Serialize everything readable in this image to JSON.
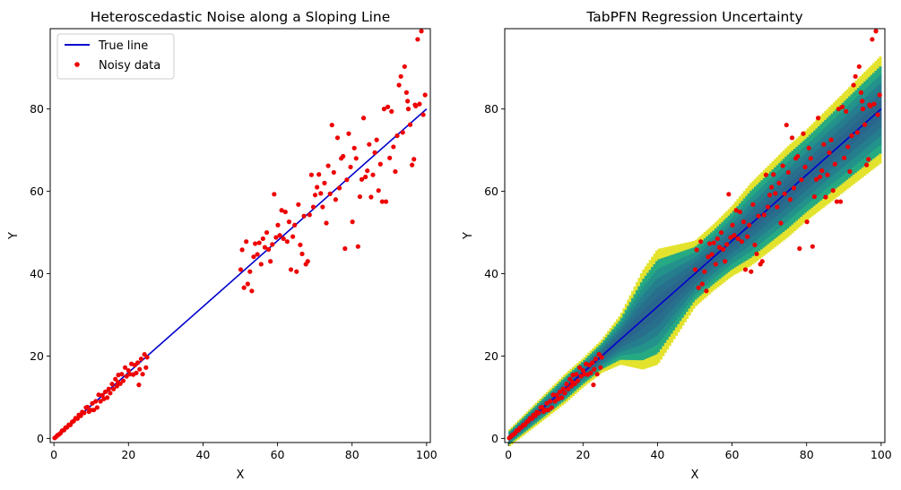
{
  "colors": {
    "true_line": "#0000cd",
    "noisy_data": "#ee0000",
    "uncertainty_low": "#2b5f8c",
    "uncertainty_mid": "#22a884",
    "uncertainty_high": "#fde725"
  },
  "chart_data": [
    {
      "type": "scatter",
      "title": "Heteroscedastic Noise along a Sloping Line",
      "xlabel": "X",
      "ylabel": "Y",
      "xlim": [
        -1,
        101
      ],
      "ylim": [
        -1,
        99.5
      ],
      "xticks": [
        0,
        20,
        40,
        60,
        80,
        100
      ],
      "yticks": [
        0,
        20,
        40,
        60,
        80
      ],
      "grid": false,
      "legend": {
        "position": "top-left",
        "entries": [
          "True line",
          "Noisy data"
        ]
      },
      "series": [
        {
          "name": "True line",
          "kind": "line",
          "color": "#0000cd",
          "x": [
            0,
            100
          ],
          "y": [
            0,
            80
          ]
        },
        {
          "name": "Noisy data",
          "kind": "scatter",
          "color": "#ee0000",
          "points": [
            [
              0.2,
              0.1
            ],
            [
              0.6,
              0.4
            ],
            [
              1.0,
              0.8
            ],
            [
              1.4,
              1.0
            ],
            [
              1.8,
              1.3
            ],
            [
              2.2,
              1.9
            ],
            [
              2.7,
              2.0
            ],
            [
              3.1,
              2.6
            ],
            [
              3.5,
              2.7
            ],
            [
              4.0,
              3.3
            ],
            [
              4.4,
              3.3
            ],
            [
              4.9,
              4.0
            ],
            [
              5.3,
              4.2
            ],
            [
              5.8,
              4.9
            ],
            [
              6.3,
              4.8
            ],
            [
              6.7,
              5.7
            ],
            [
              7.2,
              5.5
            ],
            [
              7.6,
              6.4
            ],
            [
              8.1,
              6.2
            ],
            [
              8.6,
              7.5
            ],
            [
              9.0,
              7.6
            ],
            [
              9.4,
              6.5
            ],
            [
              9.9,
              6.9
            ],
            [
              10.3,
              8.5
            ],
            [
              10.7,
              6.9
            ],
            [
              11.2,
              9.0
            ],
            [
              11.6,
              7.5
            ],
            [
              12.0,
              10.6
            ],
            [
              12.5,
              9.0
            ],
            [
              13.0,
              10.5
            ],
            [
              13.4,
              9.6
            ],
            [
              13.8,
              11.3
            ],
            [
              14.3,
              9.9
            ],
            [
              14.7,
              12.0
            ],
            [
              15.1,
              11.0
            ],
            [
              15.6,
              13.2
            ],
            [
              16.0,
              12.0
            ],
            [
              16.5,
              14.4
            ],
            [
              16.9,
              12.7
            ],
            [
              17.3,
              15.4
            ],
            [
              17.8,
              13.3
            ],
            [
              18.2,
              15.6
            ],
            [
              18.6,
              14.0
            ],
            [
              19.1,
              17.2
            ],
            [
              19.5,
              15.1
            ],
            [
              20.0,
              16.5
            ],
            [
              20.4,
              15.6
            ],
            [
              20.8,
              18.1
            ],
            [
              21.3,
              15.5
            ],
            [
              21.7,
              17.8
            ],
            [
              22.1,
              15.9
            ],
            [
              22.5,
              18.4
            ],
            [
              23.0,
              16.8
            ],
            [
              23.4,
              19.3
            ],
            [
              23.8,
              15.6
            ],
            [
              24.3,
              20.4
            ],
            [
              24.7,
              17.2
            ],
            [
              25.0,
              19.7
            ],
            [
              17.2,
              13.6
            ],
            [
              22.8,
              13.0
            ],
            [
              50.1,
              41.0
            ],
            [
              50.5,
              45.8
            ],
            [
              51.0,
              36.6
            ],
            [
              51.6,
              47.8
            ],
            [
              52.0,
              37.5
            ],
            [
              52.6,
              40.5
            ],
            [
              53.1,
              35.8
            ],
            [
              53.6,
              44.1
            ],
            [
              54.0,
              47.3
            ],
            [
              54.6,
              44.7
            ],
            [
              55.1,
              47.5
            ],
            [
              55.6,
              42.3
            ],
            [
              56.1,
              48.5
            ],
            [
              56.6,
              46.4
            ],
            [
              57.1,
              50.0
            ],
            [
              57.6,
              45.9
            ],
            [
              58.1,
              43.0
            ],
            [
              58.6,
              47.1
            ],
            [
              59.1,
              59.3
            ],
            [
              59.6,
              48.8
            ],
            [
              60.1,
              51.8
            ],
            [
              60.6,
              49.3
            ],
            [
              61.1,
              55.4
            ],
            [
              61.6,
              48.5
            ],
            [
              62.1,
              55.0
            ],
            [
              62.6,
              47.8
            ],
            [
              63.1,
              52.6
            ],
            [
              63.6,
              41.0
            ],
            [
              64.1,
              49.0
            ],
            [
              64.6,
              51.8
            ],
            [
              65.1,
              40.5
            ],
            [
              65.6,
              56.8
            ],
            [
              66.1,
              47.0
            ],
            [
              66.6,
              44.8
            ],
            [
              67.1,
              54.0
            ],
            [
              67.6,
              42.3
            ],
            [
              68.1,
              43.0
            ],
            [
              68.6,
              54.3
            ],
            [
              69.1,
              64.0
            ],
            [
              69.6,
              56.2
            ],
            [
              70.1,
              59.1
            ],
            [
              70.6,
              61.0
            ],
            [
              71.1,
              64.1
            ],
            [
              71.6,
              59.5
            ],
            [
              72.1,
              56.2
            ],
            [
              72.6,
              62.0
            ],
            [
              73.1,
              52.3
            ],
            [
              73.6,
              66.2
            ],
            [
              74.1,
              59.4
            ],
            [
              74.6,
              76.1
            ],
            [
              75.1,
              64.6
            ],
            [
              75.6,
              58.0
            ],
            [
              76.1,
              73.0
            ],
            [
              76.6,
              60.8
            ],
            [
              77.1,
              68.0
            ],
            [
              77.6,
              68.5
            ],
            [
              78.1,
              46.1
            ],
            [
              78.6,
              62.8
            ],
            [
              79.1,
              74.0
            ],
            [
              79.6,
              65.9
            ],
            [
              80.1,
              52.6
            ],
            [
              80.6,
              70.5
            ],
            [
              81.1,
              68.0
            ],
            [
              81.6,
              46.6
            ],
            [
              82.1,
              58.7
            ],
            [
              82.6,
              62.9
            ],
            [
              83.1,
              77.8
            ],
            [
              83.6,
              63.5
            ],
            [
              84.1,
              65.0
            ],
            [
              84.6,
              71.4
            ],
            [
              85.1,
              58.6
            ],
            [
              85.6,
              64.0
            ],
            [
              86.1,
              69.4
            ],
            [
              86.6,
              72.5
            ],
            [
              87.1,
              60.2
            ],
            [
              87.6,
              66.6
            ],
            [
              88.1,
              57.5
            ],
            [
              88.6,
              80.0
            ],
            [
              89.1,
              57.5
            ],
            [
              89.6,
              80.5
            ],
            [
              90.1,
              68.1
            ],
            [
              90.6,
              79.4
            ],
            [
              91.1,
              70.8
            ],
            [
              91.6,
              64.8
            ],
            [
              92.1,
              73.5
            ],
            [
              92.6,
              85.8
            ],
            [
              93.1,
              87.9
            ],
            [
              93.6,
              74.3
            ],
            [
              94.1,
              90.3
            ],
            [
              94.6,
              84.0
            ],
            [
              95.1,
              80.0
            ],
            [
              95.6,
              76.2
            ],
            [
              96.1,
              66.4
            ],
            [
              96.6,
              67.8
            ],
            [
              97.1,
              80.7
            ],
            [
              97.6,
              96.9
            ],
            [
              98.1,
              81.2
            ],
            [
              98.6,
              98.9
            ],
            [
              99.1,
              78.6
            ],
            [
              99.6,
              83.4
            ],
            [
              94.9,
              81.9
            ],
            [
              96.9,
              81.0
            ]
          ]
        }
      ]
    },
    {
      "type": "scatter",
      "title": "TabPFN Regression Uncertainty",
      "xlabel": "X",
      "ylabel": "Y",
      "xlim": [
        -1,
        101
      ],
      "ylim": [
        -1,
        99.5
      ],
      "xticks": [
        0,
        20,
        40,
        60,
        80,
        100
      ],
      "yticks": [
        0,
        20,
        40,
        60,
        80
      ],
      "grid": false,
      "legend": null,
      "uncertainty_band": {
        "colormap": "viridis",
        "x": [
          0,
          5,
          10,
          15,
          20,
          25,
          30,
          33,
          36,
          40,
          45,
          50,
          55,
          60,
          65,
          70,
          75,
          80,
          85,
          90,
          95,
          100
        ],
        "y_center": [
          0,
          4,
          8,
          12,
          16,
          20,
          24,
          26.4,
          28.8,
          32,
          36,
          40,
          44,
          48,
          52,
          56,
          60,
          64,
          68,
          72,
          76,
          80
        ],
        "half_width": [
          2.0,
          2.5,
          3.0,
          3.5,
          3.5,
          4.0,
          6.0,
          9.0,
          12.0,
          14.0,
          11.0,
          8.0,
          8.0,
          8.5,
          10.0,
          10.5,
          11.0,
          11.0,
          11.5,
          12.0,
          12.5,
          13.0
        ]
      },
      "series": [
        {
          "name": "True line",
          "kind": "line",
          "color": "#0000cd",
          "x": [
            0,
            100
          ],
          "y": [
            0,
            80
          ]
        },
        {
          "name": "Noisy data",
          "kind": "scatter",
          "color": "#ee0000",
          "points_ref": "same as first chart"
        }
      ]
    }
  ]
}
